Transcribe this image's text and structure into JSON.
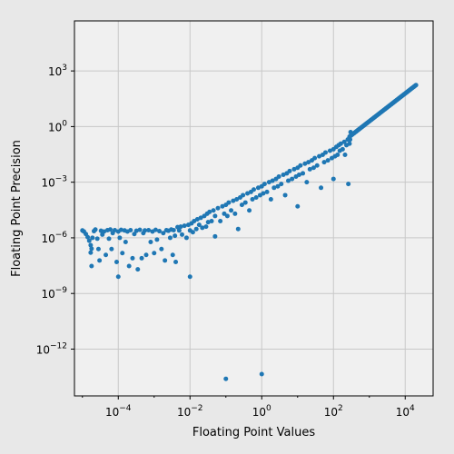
{
  "chart_data": {
    "type": "scatter",
    "title": "",
    "xlabel": "Floating Point Values",
    "ylabel": "Floating Point Precision",
    "xscale": "log",
    "yscale": "log",
    "xlim": [
      6e-06,
      60000
    ],
    "ylim": [
      3e-15,
      500000
    ],
    "grid": true,
    "legend": "none",
    "point_color": "#1f77b4",
    "x_ticks": [
      {
        "value": 0.0001,
        "base": "10",
        "exp": "−4"
      },
      {
        "value": 0.01,
        "base": "10",
        "exp": "−2"
      },
      {
        "value": 1,
        "base": "10",
        "exp": "0"
      },
      {
        "value": 100,
        "base": "10",
        "exp": "2"
      },
      {
        "value": 10000,
        "base": "10",
        "exp": "4"
      }
    ],
    "y_ticks": [
      {
        "value": 1e-12,
        "base": "10",
        "exp": "−12"
      },
      {
        "value": 1e-09,
        "base": "10",
        "exp": "−9"
      },
      {
        "value": 1e-06,
        "base": "10",
        "exp": "−6"
      },
      {
        "value": 0.001,
        "base": "10",
        "exp": "−3"
      },
      {
        "value": 1,
        "base": "10",
        "exp": "0"
      },
      {
        "value": 1000,
        "base": "10",
        "exp": "3"
      }
    ],
    "series": [
      {
        "points": [
          [
            1e-05,
            2.5e-06
          ],
          [
            1.1e-05,
            2.2e-06
          ],
          [
            1.25e-05,
            1.6e-06
          ],
          [
            1.4e-05,
            1.1e-06
          ],
          [
            1.55e-05,
            7e-07
          ],
          [
            1.7e-05,
            4e-07
          ],
          [
            1.8e-05,
            2.6e-07
          ],
          [
            1.7e-05,
            1.6e-07
          ],
          [
            1.8e-05,
            3e-08
          ],
          [
            1.9e-05,
            1e-06
          ],
          [
            2.1e-05,
            2.3e-06
          ],
          [
            2.3e-05,
            2.8e-06
          ],
          [
            2.6e-05,
            9e-07
          ],
          [
            2.8e-05,
            2.5e-07
          ],
          [
            3e-05,
            6e-08
          ],
          [
            3.3e-05,
            2.4e-06
          ],
          [
            3.6e-05,
            1.5e-06
          ],
          [
            4e-05,
            2.2e-06
          ],
          [
            4.5e-05,
            1.2e-07
          ],
          [
            5e-05,
            2.6e-06
          ],
          [
            5.5e-05,
            9e-07
          ],
          [
            6e-05,
            2.8e-06
          ],
          [
            6.5e-05,
            2.5e-07
          ],
          [
            7e-05,
            1.8e-06
          ],
          [
            8e-05,
            2.6e-06
          ],
          [
            9e-05,
            5e-08
          ],
          [
            0.0001,
            8e-09
          ],
          [
            0.0001,
            2.2e-06
          ],
          [
            0.00011,
            1e-06
          ],
          [
            0.00012,
            2.7e-06
          ],
          [
            0.00013,
            1.5e-07
          ],
          [
            0.00015,
            2.5e-06
          ],
          [
            0.00016,
            6e-07
          ],
          [
            0.00018,
            2.2e-06
          ],
          [
            0.0002,
            3e-08
          ],
          [
            0.00022,
            2.6e-06
          ],
          [
            0.00025,
            8e-08
          ],
          [
            0.00028,
            1.6e-06
          ],
          [
            0.00032,
            2.4e-06
          ],
          [
            0.00035,
            2e-08
          ],
          [
            0.0004,
            2.7e-06
          ],
          [
            0.00045,
            8e-08
          ],
          [
            0.0005,
            1.8e-06
          ],
          [
            0.00055,
            2.5e-06
          ],
          [
            0.0006,
            1.2e-07
          ],
          [
            0.0007,
            2.6e-06
          ],
          [
            0.0008,
            6e-07
          ],
          [
            0.0009,
            2.2e-06
          ],
          [
            0.001,
            1.5e-07
          ],
          [
            0.0011,
            2.7e-06
          ],
          [
            0.0012,
            8e-07
          ],
          [
            0.0014,
            2.3e-06
          ],
          [
            0.0016,
            2.5e-07
          ],
          [
            0.0018,
            1.8e-06
          ],
          [
            0.002,
            6e-08
          ],
          [
            0.0022,
            2.6e-06
          ],
          [
            0.0025,
            2.4e-06
          ],
          [
            0.0028,
            1e-06
          ],
          [
            0.003,
            2.8e-06
          ],
          [
            0.0033,
            1.2e-07
          ],
          [
            0.0035,
            2.6e-06
          ],
          [
            0.0038,
            1.3e-06
          ],
          [
            0.004,
            5e-08
          ],
          [
            0.0045,
            3.8e-06
          ],
          [
            0.005,
            2.5e-06
          ],
          [
            0.0055,
            4e-06
          ],
          [
            0.006,
            1.5e-06
          ],
          [
            0.007,
            4.5e-06
          ],
          [
            0.008,
            1e-06
          ],
          [
            0.009,
            5e-06
          ],
          [
            0.01,
            2.5e-06
          ],
          [
            0.01,
            8e-09
          ],
          [
            0.011,
            6e-06
          ],
          [
            0.012,
            2e-06
          ],
          [
            0.013,
            8e-06
          ],
          [
            0.015,
            3e-06
          ],
          [
            0.016,
            1e-05
          ],
          [
            0.018,
            5e-06
          ],
          [
            0.02,
            1.2e-05
          ],
          [
            0.022,
            3.5e-06
          ],
          [
            0.025,
            1.5e-05
          ],
          [
            0.028,
            4e-06
          ],
          [
            0.03,
            2e-05
          ],
          [
            0.032,
            7e-06
          ],
          [
            0.035,
            2.5e-05
          ],
          [
            0.04,
            8e-06
          ],
          [
            0.045,
            3e-05
          ],
          [
            0.05,
            1.2e-06
          ],
          [
            0.05,
            1.5e-05
          ],
          [
            0.06,
            4e-05
          ],
          [
            0.07,
            8e-06
          ],
          [
            0.08,
            5e-05
          ],
          [
            0.09,
            2e-05
          ],
          [
            0.1,
            6e-05
          ],
          [
            0.1,
            2.5e-14
          ],
          [
            0.11,
            1.5e-05
          ],
          [
            0.12,
            8e-05
          ],
          [
            0.14,
            3e-05
          ],
          [
            0.16,
            0.0001
          ],
          [
            0.18,
            2e-05
          ],
          [
            0.2,
            0.00012
          ],
          [
            0.22,
            3e-06
          ],
          [
            0.25,
            0.00015
          ],
          [
            0.28,
            6e-05
          ],
          [
            0.3,
            0.0002
          ],
          [
            0.35,
            8e-05
          ],
          [
            0.4,
            0.00025
          ],
          [
            0.45,
            3e-05
          ],
          [
            0.5,
            0.0003
          ],
          [
            0.55,
            0.00012
          ],
          [
            0.6,
            0.0004
          ],
          [
            0.7,
            0.00015
          ],
          [
            0.8,
            0.0005
          ],
          [
            0.9,
            0.0002
          ],
          [
            1.0,
            0.0006
          ],
          [
            1.0,
            4.5e-14
          ],
          [
            1.1,
            0.00025
          ],
          [
            1.2,
            0.0008
          ],
          [
            1.4,
            0.0003
          ],
          [
            1.6,
            0.001
          ],
          [
            1.8,
            0.00012
          ],
          [
            2.0,
            0.0012
          ],
          [
            2.2,
            0.0005
          ],
          [
            2.5,
            0.0015
          ],
          [
            2.8,
            0.0006
          ],
          [
            3.0,
            0.002
          ],
          [
            3.5,
            0.0008
          ],
          [
            4.0,
            0.0025
          ],
          [
            4.5,
            0.0002
          ],
          [
            5.0,
            0.003
          ],
          [
            5.5,
            0.0012
          ],
          [
            6.0,
            0.004
          ],
          [
            7.0,
            0.0015
          ],
          [
            8.0,
            0.005
          ],
          [
            9.0,
            0.002
          ],
          [
            10,
            0.006
          ],
          [
            10,
            5e-05
          ],
          [
            11,
            0.0025
          ],
          [
            12,
            0.008
          ],
          [
            14,
            0.003
          ],
          [
            16,
            0.01
          ],
          [
            18,
            0.001
          ],
          [
            20,
            0.012
          ],
          [
            22,
            0.005
          ],
          [
            25,
            0.015
          ],
          [
            28,
            0.006
          ],
          [
            30,
            0.02
          ],
          [
            35,
            0.008
          ],
          [
            40,
            0.025
          ],
          [
            45,
            0.0005
          ],
          [
            50,
            0.03
          ],
          [
            55,
            0.012
          ],
          [
            60,
            0.04
          ],
          [
            70,
            0.015
          ],
          [
            80,
            0.05
          ],
          [
            90,
            0.02
          ],
          [
            100,
            0.06
          ],
          [
            100,
            0.0015
          ],
          [
            110,
            0.025
          ],
          [
            120,
            0.08
          ],
          [
            130,
            0.03
          ],
          [
            140,
            0.1
          ],
          [
            150,
            0.05
          ],
          [
            160,
            0.12
          ],
          [
            180,
            0.06
          ],
          [
            200,
            0.15
          ],
          [
            210,
            0.03
          ],
          [
            230,
            0.1
          ],
          [
            250,
            0.2
          ],
          [
            260,
            0.0008
          ],
          [
            280,
            0.12
          ],
          [
            290,
            0.2
          ],
          [
            300,
            0.5
          ]
        ]
      },
      {
        "curve": "x^1.5 / 16384",
        "x_from": 280,
        "x_to": 20000
      }
    ]
  }
}
